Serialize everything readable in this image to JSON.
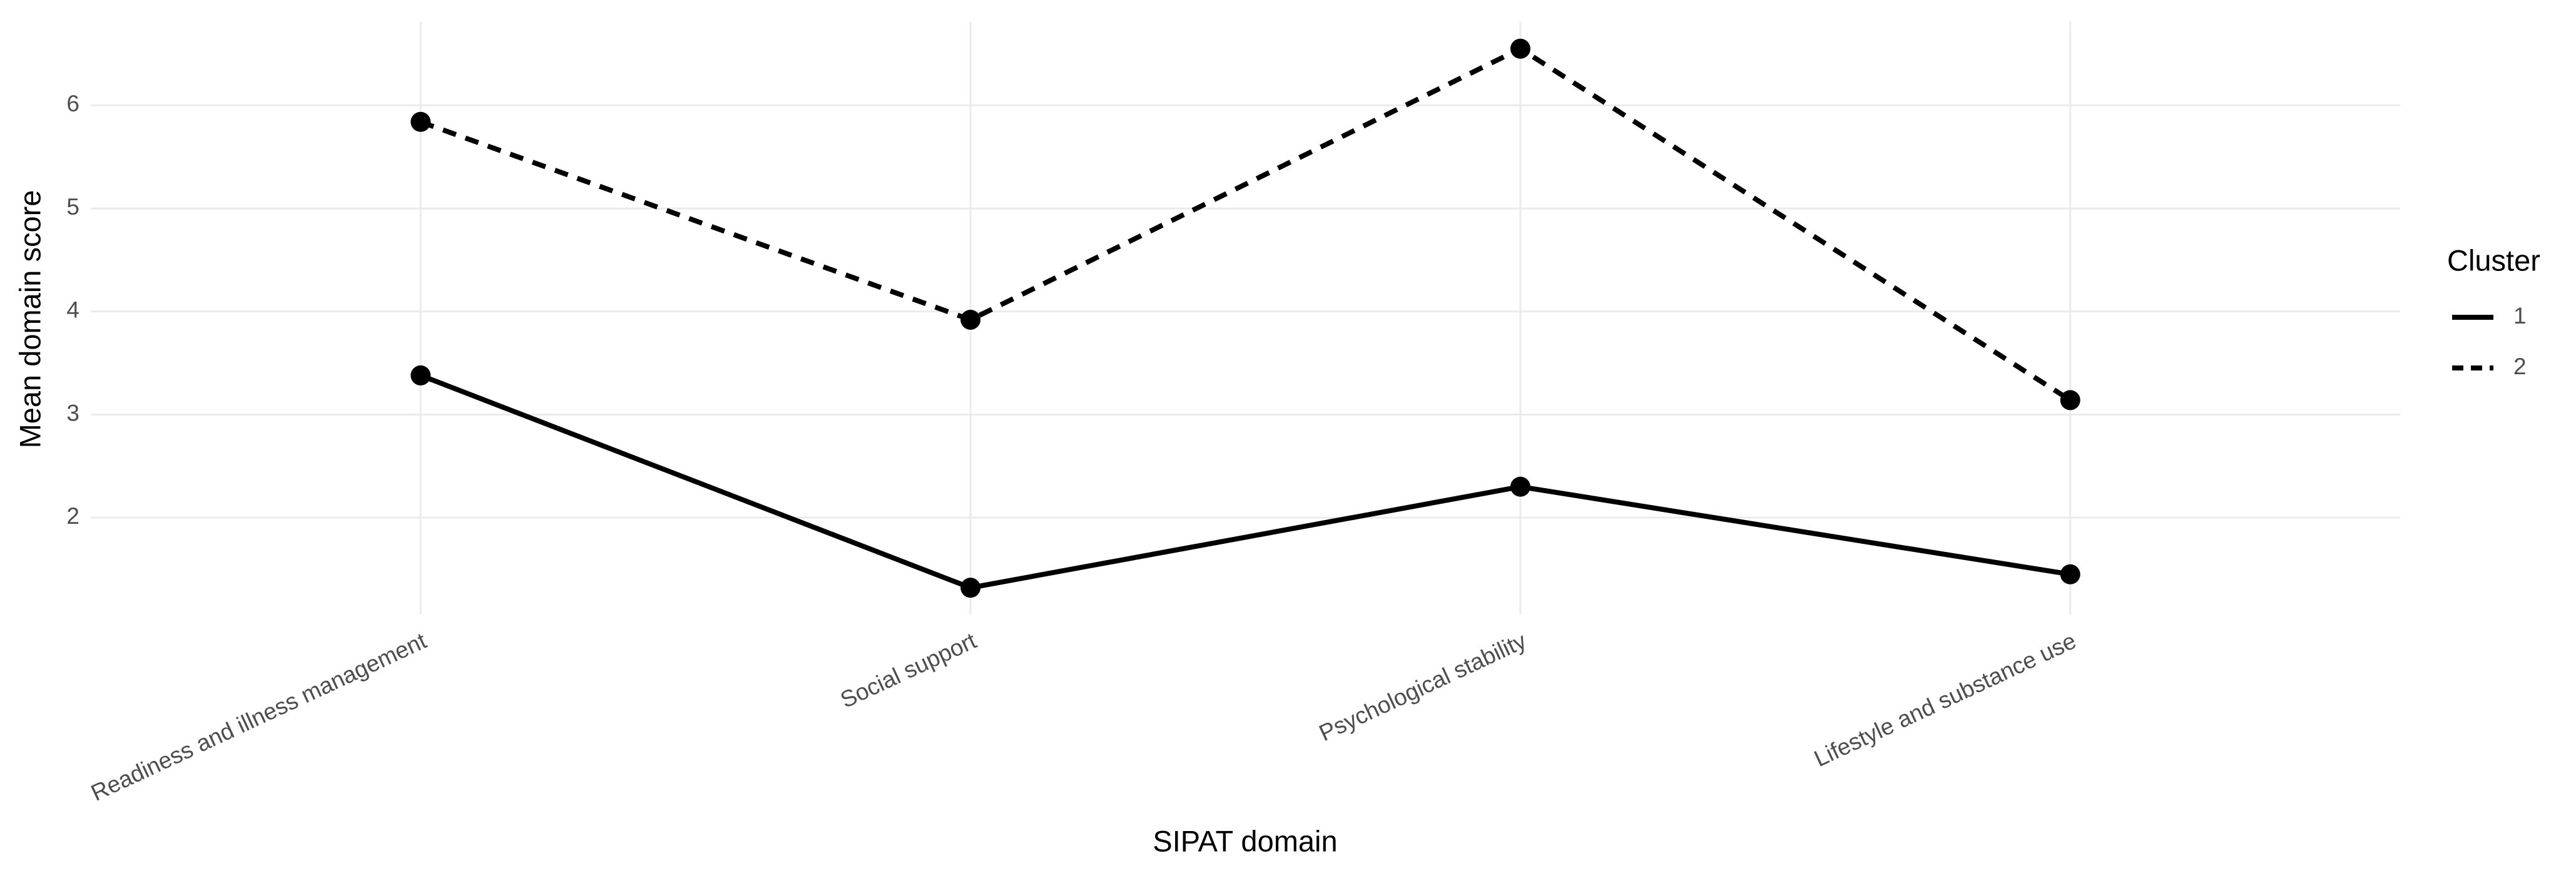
{
  "chart_data": {
    "type": "line",
    "x_label": "SIPAT domain",
    "y_label": "Mean domain score",
    "categories": [
      "Readiness and illness management",
      "Social support",
      "Psychological stability",
      "Lifestyle and substance use"
    ],
    "series": [
      {
        "name": "1",
        "color": "#000000",
        "linetype": "solid",
        "values": [
          3.38,
          1.32,
          2.3,
          1.45
        ]
      },
      {
        "name": "2",
        "color": "#000000",
        "linetype": "dashed",
        "values": [
          5.84,
          3.92,
          6.55,
          3.14
        ]
      }
    ],
    "legend_title": "Cluster",
    "legend": "right",
    "ylim": [
      1.06,
      6.81
    ],
    "yticks": [
      2,
      3,
      4,
      5,
      6
    ],
    "grid": true
  }
}
